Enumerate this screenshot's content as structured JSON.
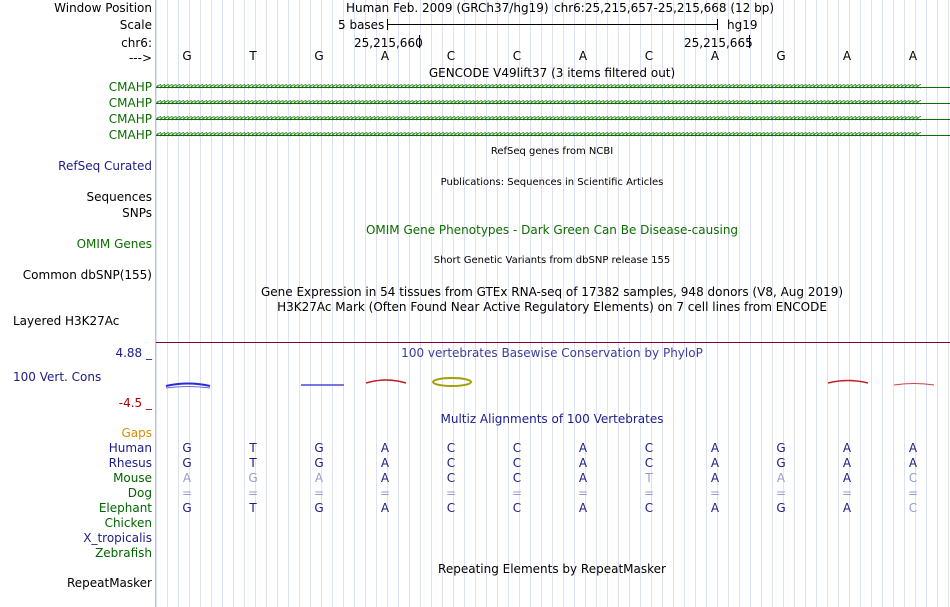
{
  "left_labels": {
    "window_position": "Window Position",
    "scale": "Scale",
    "chrom": "chr6:",
    "arrow": "--->",
    "cmahp_1": "CMAHP",
    "cmahp_2": "CMAHP",
    "cmahp_3": "CMAHP",
    "cmahp_4": "CMAHP",
    "refseq": "RefSeq Curated",
    "sequences": "Sequences",
    "snps": "SNPs",
    "omim": "OMIM Genes",
    "dbsnp": "Common dbSNP(155)",
    "h3k27ac": "Layered H3K27Ac",
    "phylop_max": "4.88 _",
    "cons": "100 Vert. Cons",
    "phylop_min": "-4.5 _",
    "gaps": "Gaps",
    "repeatmasker": "RepeatMasker"
  },
  "species": [
    "Human",
    "Rhesus",
    "Mouse",
    "Dog",
    "Elephant",
    "Chicken",
    "X_tropicalis",
    "Zebrafish"
  ],
  "ruler": {
    "assembly": "Human Feb. 2009 (GRCh37/hg19)",
    "position": "chr6:25,215,657-25,215,668 (12 bp)",
    "scale_text": "5 bases",
    "db": "hg19",
    "coord1": "25,215,660",
    "coord2": "25,215,665"
  },
  "bases": [
    "G",
    "T",
    "G",
    "A",
    "C",
    "C",
    "A",
    "C",
    "A",
    "G",
    "A",
    "A"
  ],
  "tracks": {
    "gencode": "GENCODE V49lift37 (3 items filtered out)",
    "refseq": "RefSeq genes from NCBI",
    "publications": "Publications: Sequences in Scientific Articles",
    "omim": "OMIM Gene Phenotypes - Dark Green Can Be Disease-causing",
    "dbsnp": "Short Genetic Variants from dbSNP release 155",
    "gtex": "Gene Expression in 54 tissues from GTEx RNA-seq of 17382 samples, 948 donors (V8, Aug 2019)",
    "h3k27ac": "H3K27Ac Mark (Often Found Near Active Regulatory Elements) on 7 cell lines from ENCODE",
    "phylop": "100 vertebrates Basewise Conservation by PhyloP",
    "multiz": "Multiz Alignments of 100 Vertebrates",
    "repeatmasker": "Repeating Elements by RepeatMasker"
  },
  "alignment": {
    "human": [
      "G",
      "T",
      "G",
      "A",
      "C",
      "C",
      "A",
      "C",
      "A",
      "G",
      "A",
      "A"
    ],
    "rhesus": [
      "G",
      "T",
      "G",
      "A",
      "C",
      "C",
      "A",
      "C",
      "A",
      "G",
      "A",
      "A"
    ],
    "mouse": [
      "A",
      "G",
      "A",
      "A",
      "C",
      "C",
      "A",
      "T",
      "A",
      "A",
      "A",
      "C"
    ],
    "dog": [
      "=",
      "=",
      "=",
      "=",
      "=",
      "=",
      "=",
      "=",
      "=",
      "=",
      "=",
      "="
    ],
    "elephant": [
      "G",
      "T",
      "G",
      "A",
      "C",
      "C",
      "A",
      "C",
      "A",
      "G",
      "A",
      "C"
    ]
  },
  "colors": {
    "gene_green": "#0c6c00",
    "navy": "#1c1c88",
    "purple": "#3c3c9c",
    "gray": "#9a9ad0",
    "gaps_orange": "#d88c00",
    "species_green": "#006400"
  }
}
